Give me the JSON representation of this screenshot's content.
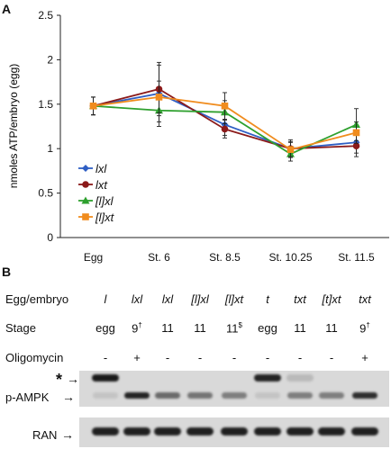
{
  "panelA": {
    "label": "A"
  },
  "panelB": {
    "label": "B"
  },
  "chart_data": {
    "type": "line",
    "title": "",
    "xlabel": "",
    "ylabel": "nmoles ATP/embryo (egg)",
    "categories": [
      "Egg",
      "St. 6",
      "St. 8.5",
      "St. 10.25",
      "St. 11.5"
    ],
    "ylim": [
      0,
      2.5
    ],
    "yticks": [
      "0",
      "0.5",
      "1",
      "1.5",
      "2",
      "2.5"
    ],
    "grid": false,
    "legend_position": "left-center",
    "series": [
      {
        "name": "lxl",
        "color": "#2f5fc4",
        "marker": "diamond",
        "values": [
          1.48,
          1.62,
          1.27,
          1.0,
          1.07
        ],
        "err": [
          0.1,
          0.32,
          0.12,
          0.1,
          0.12
        ]
      },
      {
        "name": "lxt",
        "color": "#8b1a1a",
        "marker": "circle",
        "values": [
          1.48,
          1.67,
          1.22,
          1.0,
          1.03
        ],
        "err": [
          0.1,
          0.3,
          0.1,
          0.08,
          0.12
        ]
      },
      {
        "name": "[l]xl",
        "color": "#2ea02e",
        "marker": "triangle",
        "values": [
          1.48,
          1.43,
          1.41,
          0.94,
          1.27
        ],
        "err": [
          0.1,
          0.18,
          0.13,
          0.08,
          0.18
        ]
      },
      {
        "name": "[l]xt",
        "color": "#f08c1e",
        "marker": "square",
        "values": [
          1.48,
          1.58,
          1.48,
          0.99,
          1.18
        ],
        "err": [
          0.1,
          0.18,
          0.15,
          0.08,
          0.12
        ]
      }
    ]
  },
  "blot_table": {
    "row_labels": [
      "Egg/embryo",
      "Stage",
      "Oligomycin"
    ],
    "columns": [
      {
        "egg": "l",
        "stage": "egg",
        "stage_sup": "",
        "oligo": "-"
      },
      {
        "egg": "lxl",
        "stage": "9",
        "stage_sup": "†",
        "oligo": "+"
      },
      {
        "egg": "lxl",
        "stage": "11",
        "stage_sup": "",
        "oligo": "-"
      },
      {
        "egg": "[l]xl",
        "stage": "11",
        "stage_sup": "",
        "oligo": "-"
      },
      {
        "egg": "[l]xt",
        "stage": "11",
        "stage_sup": "$",
        "oligo": "-"
      },
      {
        "egg": "t",
        "stage": "egg",
        "stage_sup": "",
        "oligo": "-"
      },
      {
        "egg": "txt",
        "stage": "11",
        "stage_sup": "",
        "oligo": "-"
      },
      {
        "egg": "[t]xt",
        "stage": "11",
        "stage_sup": "",
        "oligo": "-"
      },
      {
        "egg": "txt",
        "stage": "9",
        "stage_sup": "†",
        "oligo": "+"
      }
    ],
    "blot_labels": {
      "star": "*",
      "pampk": "p-AMPK",
      "ran": "RAN"
    },
    "pampk_band_intensity": [
      0.1,
      0.9,
      0.55,
      0.5,
      0.45,
      0.1,
      0.45,
      0.45,
      0.85
    ],
    "star_band_intensity": [
      0.95,
      0.0,
      0.0,
      0.0,
      0.0,
      0.9,
      0.15,
      0.0,
      0.0
    ]
  }
}
